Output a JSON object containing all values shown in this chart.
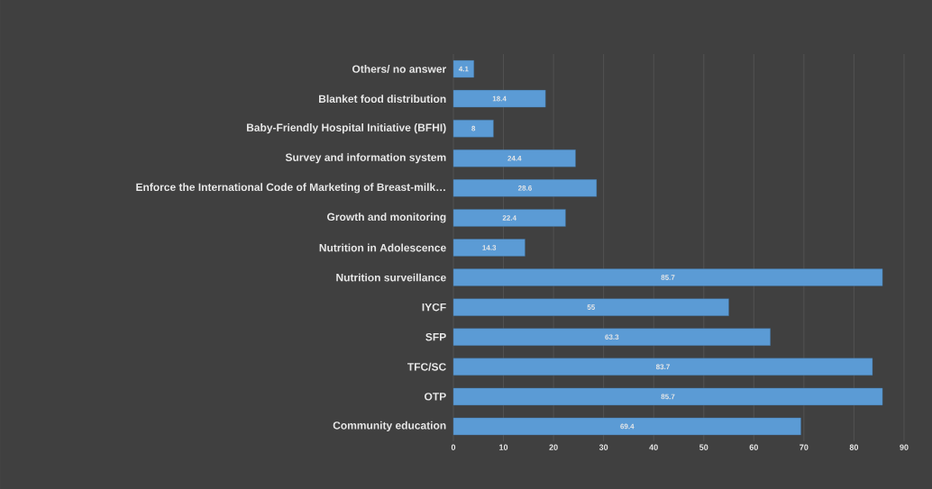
{
  "chart_data": {
    "type": "bar",
    "orientation": "horizontal",
    "categories": [
      "Others/ no answer",
      "Blanket food distribution",
      "Baby-Friendly Hospital Initiative (BFHI)",
      "Survey and information system",
      "Enforce the International Code of Marketing of Breast-milk…",
      "Growth and monitoring",
      "Nutrition in Adolescence",
      "Nutrition surveillance",
      "IYCF",
      "SFP",
      "TFC/SC",
      "OTP",
      "Community education"
    ],
    "values": [
      4.1,
      18.4,
      8,
      24.4,
      28.6,
      22.4,
      14.3,
      85.7,
      55,
      63.3,
      83.7,
      85.7,
      69.4
    ],
    "color": "#5b9bd5",
    "data_labels": true,
    "grid": "x",
    "xlim": [
      0,
      90
    ],
    "xticks": [
      0,
      10,
      20,
      30,
      40,
      50,
      60,
      70,
      80,
      90
    ]
  }
}
